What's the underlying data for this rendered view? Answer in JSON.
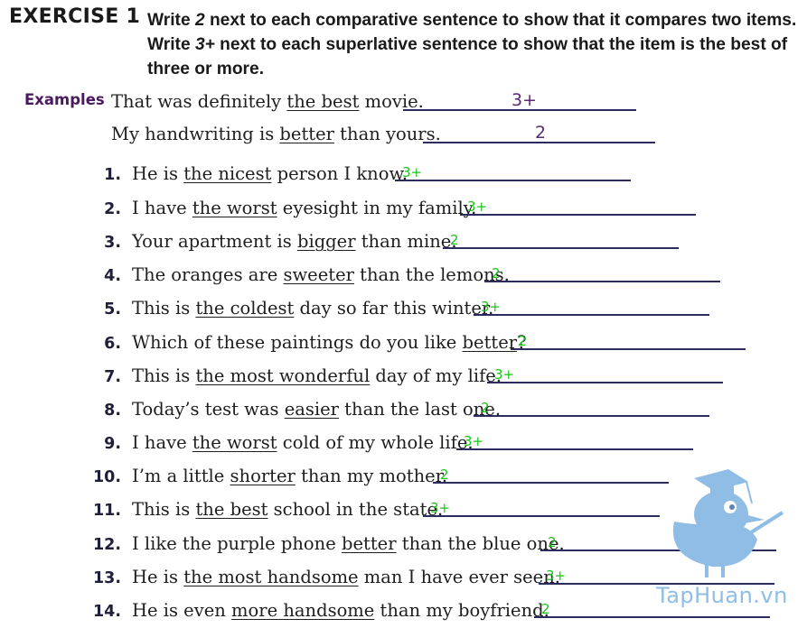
{
  "header": {
    "exercise": "EXERCISE 1",
    "instruction_line1_pre": "Write ",
    "instruction_line1_num": "2",
    "instruction_line1_post": " next to each comparative sentence to show that it compares two items.",
    "instruction_line2_pre": "Write ",
    "instruction_line2_num": "3+",
    "instruction_line2_post": " next to each superlative sentence to show that the item is the best of three or more."
  },
  "examples": {
    "label": "Examples",
    "items": [
      {
        "pre": "That was definitely ",
        "u": "the best",
        "post": " movie.",
        "answer": "3+"
      },
      {
        "pre": "My handwriting is ",
        "u": "better",
        "post": " than yours.",
        "answer": "2"
      }
    ]
  },
  "items": [
    {
      "num": "1.",
      "pre": "He is ",
      "u": "the nicest",
      "post": " person I know.",
      "answer": "3+"
    },
    {
      "num": "2.",
      "pre": "I have ",
      "u": "the worst",
      "post": " eyesight in my family.",
      "answer": "3+"
    },
    {
      "num": "3.",
      "pre": "Your apartment is ",
      "u": "bigger",
      "post": " than mine.",
      "answer": "2"
    },
    {
      "num": "4.",
      "pre": "The oranges are ",
      "u": "sweeter",
      "post": " than the lemons.",
      "answer": "2"
    },
    {
      "num": "5.",
      "pre": "This is ",
      "u": "the coldest",
      "post": " day so far this winter.",
      "answer": "3+"
    },
    {
      "num": "6.",
      "pre": "Which of these paintings do you like ",
      "u": "better",
      "post": "?",
      "answer": "2"
    },
    {
      "num": "7.",
      "pre": "This is ",
      "u": "the most wonderful",
      "post": " day of my life.",
      "answer": "3+"
    },
    {
      "num": "8.",
      "pre": "Today’s test was ",
      "u": "easier",
      "post": " than the last one.",
      "answer": "2"
    },
    {
      "num": "9.",
      "pre": "I have ",
      "u": "the worst",
      "post": " cold of my whole life.",
      "answer": "3+"
    },
    {
      "num": "10.",
      "pre": "I’m a little ",
      "u": "shorter",
      "post": " than my mother.",
      "answer": "2"
    },
    {
      "num": "11.",
      "pre": "This is ",
      "u": "the best",
      "post": " school in the state.",
      "answer": "3+"
    },
    {
      "num": "12.",
      "pre": "I like the purple phone ",
      "u": "better",
      "post": " than the blue one.",
      "answer": "2"
    },
    {
      "num": "13.",
      "pre": "He is ",
      "u": "the most handsome",
      "post": " man I have ever seen.",
      "answer": "3+"
    },
    {
      "num": "14.",
      "pre": "He is even ",
      "u": "more handsome",
      "post": " than my boyfriend.",
      "answer": "2"
    }
  ],
  "watermark": "TapHuan.vn",
  "colors": {
    "answer_green": "#19c419",
    "example_purple": "#5a2a6e",
    "label_purple": "#4a1a60",
    "rule_navy": "#2c2c5e",
    "mascot_blue": "#8fbde6"
  }
}
